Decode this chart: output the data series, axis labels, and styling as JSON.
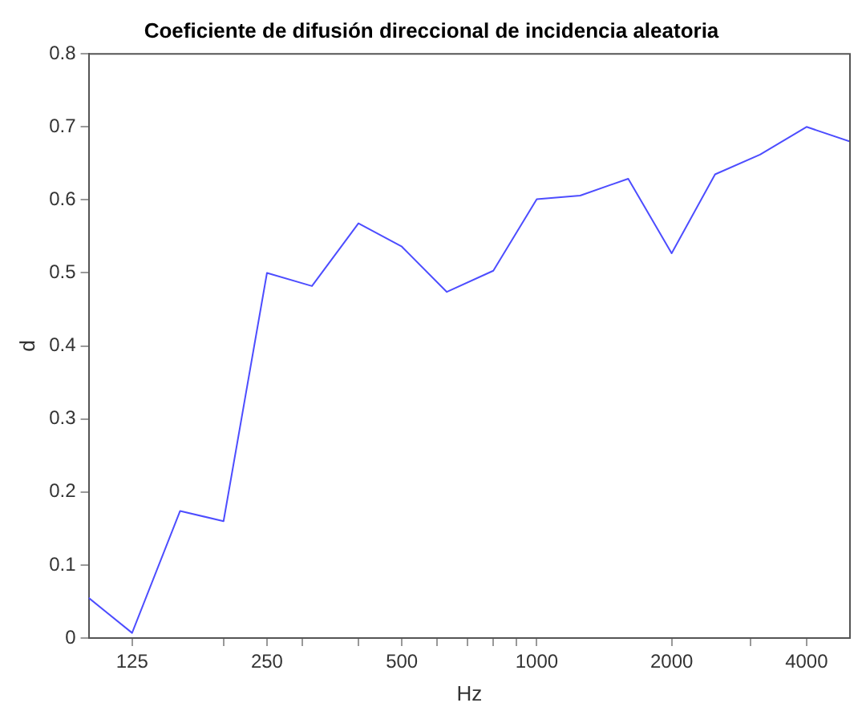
{
  "chart_data": {
    "type": "line",
    "title": "Coeficiente de difusión direccional de incidencia aleatoria",
    "xlabel": "Hz",
    "ylabel": "d",
    "log": "x",
    "x": [
      100,
      125,
      160,
      200,
      250,
      315,
      400,
      500,
      630,
      800,
      1000,
      1250,
      1600,
      2000,
      2500,
      3150,
      4000,
      5000
    ],
    "series": [
      {
        "color": "#4d4dff",
        "values": [
          0.055,
          0.007,
          0.174,
          0.16,
          0.5,
          0.482,
          0.568,
          0.536,
          0.474,
          0.503,
          0.601,
          0.606,
          0.629,
          0.527,
          0.635,
          0.662,
          0.7,
          0.68
        ]
      }
    ],
    "xlim": [
      100,
      5000
    ],
    "xticks": [
      {
        "value": 125,
        "label": "125"
      },
      {
        "value": 200,
        "label": null
      },
      {
        "value": 250,
        "label": "250"
      },
      {
        "value": 300,
        "label": null
      },
      {
        "value": 400,
        "label": null
      },
      {
        "value": 500,
        "label": "500"
      },
      {
        "value": 600,
        "label": null
      },
      {
        "value": 700,
        "label": null
      },
      {
        "value": 800,
        "label": null
      },
      {
        "value": 900,
        "label": null
      },
      {
        "value": 1000,
        "label": "1000"
      },
      {
        "value": 2000,
        "label": "2000"
      },
      {
        "value": 3000,
        "label": null
      },
      {
        "value": 4000,
        "label": "4000"
      }
    ],
    "ylim": [
      0,
      0.8
    ],
    "yticks": [
      0,
      0.1,
      0.2,
      0.3,
      0.4,
      0.5,
      0.6,
      0.7,
      0.8
    ],
    "grid": false,
    "legend": false
  }
}
